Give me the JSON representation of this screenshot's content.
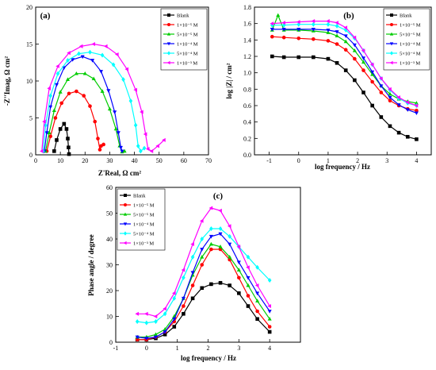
{
  "legend_entries": [
    "Blank",
    "1×10⁻⁵ M",
    "5×10⁻⁵ M",
    "1×10⁻⁴ M",
    "5×10⁻⁴ M",
    "1×10⁻³ M"
  ],
  "series_colors": [
    "#000000",
    "#ff0000",
    "#00cc00",
    "#0000ff",
    "#00ffff",
    "#ff00ff"
  ],
  "series_markers": [
    "square",
    "circle",
    "triangle-up",
    "triangle-down",
    "diamond",
    "triangle-left"
  ],
  "chart_data": [
    {
      "type": "scatter",
      "panel": "(a)",
      "xlabel": "Z'Real, Ω cm²",
      "ylabel": "-Z''Imag, Ω cm²",
      "xlim": [
        0,
        70
      ],
      "ylim": [
        0,
        20
      ],
      "xticks": [
        "0",
        "10",
        "20",
        "30",
        "40",
        "50",
        "60",
        "70"
      ],
      "yticks": [
        "0",
        "5",
        "10",
        "15",
        "20"
      ],
      "series": [
        {
          "name": "Blank",
          "x": [
            7.5,
            8.5,
            10,
            11.5,
            12.5,
            13,
            13.3,
            13.5
          ],
          "y": [
            0.5,
            2.0,
            3.5,
            4.2,
            3.5,
            2.2,
            1.0,
            0.1
          ]
        },
        {
          "name": "1×10⁻⁵ M",
          "x": [
            4.5,
            6,
            8,
            10.5,
            13.5,
            16.5,
            19.5,
            22,
            24,
            25.2,
            26,
            26.5,
            27.5
          ],
          "y": [
            0.5,
            2.5,
            5,
            7,
            8.3,
            8.6,
            8,
            6.6,
            4.5,
            2.2,
            0.7,
            1.2,
            1.4
          ]
        },
        {
          "name": "5×10⁻⁵ M",
          "x": [
            4,
            5.5,
            7.5,
            10,
            13,
            16.5,
            20,
            23.5,
            27,
            30,
            32.5,
            34,
            35,
            36
          ],
          "y": [
            0.5,
            3,
            6,
            8.5,
            10.2,
            11.0,
            11.0,
            10.3,
            8.6,
            6.2,
            3.5,
            1.2,
            0.4,
            0.5
          ]
        },
        {
          "name": "1×10⁻⁴ M",
          "x": [
            3.5,
            4.5,
            6,
            8.5,
            11.5,
            15,
            19,
            23,
            26.5,
            29.5,
            32,
            33.5,
            34.5,
            35
          ],
          "y": [
            0.5,
            3,
            6.5,
            9.5,
            11.8,
            12.9,
            13.3,
            12.8,
            11.3,
            8.7,
            5.8,
            3.0,
            1.0,
            0.5
          ]
        },
        {
          "name": "5×10⁻⁴ M",
          "x": [
            3,
            4,
            6,
            9,
            13,
            17.5,
            22,
            27,
            31.5,
            35.5,
            38.5,
            40.5,
            41.5,
            42.5,
            44
          ],
          "y": [
            0.5,
            4,
            8,
            11,
            12.8,
            13.7,
            13.9,
            13.5,
            12.2,
            10.2,
            7.3,
            4.0,
            1.2,
            0.5,
            0.9
          ]
        },
        {
          "name": "1×10⁻³ M",
          "x": [
            2.5,
            3.5,
            5.5,
            9,
            13.5,
            18.5,
            23.5,
            28.5,
            33,
            37,
            40.5,
            43,
            44.5,
            45.5,
            47,
            49.5,
            52
          ],
          "y": [
            0.5,
            4.5,
            9,
            12,
            13.8,
            14.7,
            15.0,
            14.7,
            13.6,
            11.6,
            8.8,
            5.8,
            2.8,
            0.8,
            0.5,
            1.2,
            2.0
          ]
        }
      ]
    },
    {
      "type": "scatter",
      "panel": "(b)",
      "xlabel": "log frequency / Hz",
      "ylabel": "log |Z| / cm²",
      "xlim": [
        -1.5,
        4.5
      ],
      "ylim": [
        0.0,
        1.8
      ],
      "xticks": [
        "-1",
        "0",
        "1",
        "2",
        "3",
        "4"
      ],
      "yticks": [
        "0.0",
        "0.2",
        "0.4",
        "0.6",
        "0.8",
        "1.0",
        "1.2",
        "1.4",
        "1.6",
        "1.8"
      ],
      "series": [
        {
          "name": "Blank",
          "x": [
            -0.9,
            -0.5,
            0,
            0.5,
            1.0,
            1.3,
            1.6,
            1.9,
            2.2,
            2.5,
            2.8,
            3.1,
            3.4,
            3.7,
            4.0
          ],
          "y": [
            1.2,
            1.19,
            1.19,
            1.19,
            1.17,
            1.12,
            1.03,
            0.91,
            0.76,
            0.6,
            0.46,
            0.35,
            0.27,
            0.22,
            0.19
          ]
        },
        {
          "name": "1×10⁻⁵ M",
          "x": [
            -0.9,
            -0.5,
            0,
            0.5,
            1.0,
            1.3,
            1.6,
            1.9,
            2.2,
            2.5,
            2.8,
            3.1,
            3.4,
            3.7,
            4.0
          ],
          "y": [
            1.44,
            1.43,
            1.42,
            1.41,
            1.39,
            1.35,
            1.28,
            1.17,
            1.03,
            0.89,
            0.76,
            0.66,
            0.6,
            0.56,
            0.54
          ]
        },
        {
          "name": "5×10⁻⁵ M",
          "x": [
            -0.9,
            -0.7,
            -0.5,
            0,
            0.5,
            1.0,
            1.3,
            1.6,
            1.9,
            2.2,
            2.5,
            2.8,
            3.1,
            3.4,
            3.7,
            4.0
          ],
          "y": [
            1.52,
            1.7,
            1.52,
            1.52,
            1.51,
            1.49,
            1.45,
            1.38,
            1.27,
            1.13,
            0.98,
            0.84,
            0.74,
            0.68,
            0.65,
            0.63
          ]
        },
        {
          "name": "1×10⁻⁴ M",
          "x": [
            -0.9,
            -0.5,
            0,
            0.5,
            1.0,
            1.3,
            1.6,
            1.9,
            2.2,
            2.5,
            2.8,
            3.1,
            3.4,
            3.7,
            4.0
          ],
          "y": [
            1.53,
            1.53,
            1.53,
            1.53,
            1.52,
            1.5,
            1.45,
            1.34,
            1.18,
            1.01,
            0.84,
            0.7,
            0.61,
            0.55,
            0.51
          ]
        },
        {
          "name": "5×10⁻⁴ M",
          "x": [
            -0.9,
            -0.5,
            0,
            0.5,
            1.0,
            1.3,
            1.6,
            1.9,
            2.2,
            2.5,
            2.8,
            3.1,
            3.4,
            3.7,
            4.0
          ],
          "y": [
            1.58,
            1.58,
            1.59,
            1.59,
            1.59,
            1.57,
            1.52,
            1.42,
            1.27,
            1.1,
            0.93,
            0.79,
            0.69,
            0.63,
            0.6
          ]
        },
        {
          "name": "1×10⁻³ M",
          "x": [
            -0.9,
            -0.5,
            0,
            0.5,
            1.0,
            1.3,
            1.6,
            1.9,
            2.2,
            2.5,
            2.8,
            3.1,
            3.4,
            3.7,
            4.0
          ],
          "y": [
            1.6,
            1.61,
            1.62,
            1.63,
            1.63,
            1.61,
            1.55,
            1.43,
            1.27,
            1.1,
            0.93,
            0.8,
            0.7,
            0.64,
            0.6
          ]
        }
      ]
    },
    {
      "type": "scatter",
      "panel": "(c)",
      "xlabel": "log frequency / Hz",
      "ylabel": "Phase angle / degree",
      "xlim": [
        -1,
        5
      ],
      "ylim": [
        0,
        60
      ],
      "xticks": [
        "-1",
        "0",
        "1",
        "2",
        "3",
        "4"
      ],
      "yticks": [
        "0",
        "10",
        "20",
        "30",
        "40",
        "50",
        "60"
      ],
      "series": [
        {
          "name": "Blank",
          "x": [
            -0.3,
            0,
            0.3,
            0.6,
            0.9,
            1.2,
            1.5,
            1.8,
            2.1,
            2.4,
            2.7,
            3.0,
            3.3,
            3.6,
            4.0
          ],
          "y": [
            1,
            1,
            1.5,
            3,
            6,
            11,
            17,
            21,
            22.5,
            23,
            22,
            19,
            14,
            9,
            4
          ]
        },
        {
          "name": "1×10⁻⁵ M",
          "x": [
            -0.3,
            0,
            0.3,
            0.6,
            0.9,
            1.2,
            1.5,
            1.8,
            2.1,
            2.4,
            2.7,
            3.0,
            3.3,
            3.6,
            4.0
          ],
          "y": [
            1,
            1,
            2,
            4,
            8,
            14,
            22,
            30,
            36,
            36,
            32,
            25,
            18,
            12,
            6
          ]
        },
        {
          "name": "5×10⁻⁵ M",
          "x": [
            -0.3,
            0,
            0.3,
            0.6,
            0.9,
            1.2,
            1.5,
            1.8,
            2.1,
            2.4,
            2.7,
            3.0,
            3.3,
            3.6,
            4.0
          ],
          "y": [
            2,
            2,
            3,
            5,
            10,
            17,
            26,
            33,
            38,
            37,
            33,
            28,
            22,
            16,
            9
          ]
        },
        {
          "name": "1×10⁻⁴ M",
          "x": [
            -0.3,
            0,
            0.3,
            0.6,
            0.9,
            1.2,
            1.5,
            1.8,
            2.1,
            2.4,
            2.7,
            3.0,
            3.3,
            3.6,
            4.0
          ],
          "y": [
            2,
            1.5,
            2,
            4,
            9,
            17,
            27,
            36,
            41,
            42,
            38,
            31,
            25,
            19,
            12
          ]
        },
        {
          "name": "5×10⁻⁴ M",
          "x": [
            -0.3,
            0,
            0.3,
            0.6,
            0.9,
            1.2,
            1.5,
            1.8,
            2.1,
            2.4,
            2.7,
            3.0,
            3.3,
            3.6,
            4.0
          ],
          "y": [
            8,
            7.5,
            8,
            11,
            17,
            25,
            33,
            40,
            44,
            44,
            41,
            37,
            33,
            29,
            24
          ]
        },
        {
          "name": "1×10⁻³ M",
          "x": [
            -0.3,
            0,
            0.3,
            0.6,
            0.9,
            1.2,
            1.5,
            1.8,
            2.1,
            2.4,
            2.7,
            3.0,
            3.3,
            3.6,
            4.0
          ],
          "y": [
            11,
            11,
            10,
            13,
            19,
            28,
            38,
            47,
            52,
            51,
            45,
            37,
            29,
            22,
            14
          ]
        }
      ]
    }
  ]
}
